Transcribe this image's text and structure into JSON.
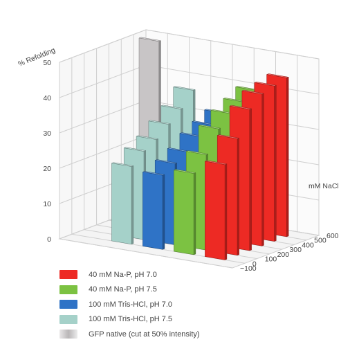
{
  "chart_data": {
    "type": "bar",
    "title": "",
    "zlabel": "% Refolding",
    "depth_label": "mM NaCl",
    "zlim": [
      0,
      50
    ],
    "z_ticks": [
      0,
      10,
      20,
      30,
      40,
      50
    ],
    "depth_ticks": [
      -100,
      0,
      100,
      200,
      300,
      400,
      500,
      600
    ],
    "depth_positions": [
      0,
      100,
      200,
      300,
      400,
      500
    ],
    "grid": true,
    "legend_position": "bottom-left",
    "series": [
      {
        "name": "40 mM Na-P, pH 7.0",
        "color": "#ed2a24",
        "values": [
          27,
          33,
          40,
          43,
          44,
          45
        ]
      },
      {
        "name": "40 mM Na-P, pH 7.5",
        "color": "#7cc242",
        "values": [
          23,
          27,
          33,
          36,
          38,
          40
        ]
      },
      {
        "name": "100 mM Tris-HCl, pH 7.0",
        "color": "#2f73c6",
        "values": [
          21,
          23,
          25,
          28,
          30,
          32
        ]
      },
      {
        "name": "100 mM Tris-HCl, pH 7.5",
        "color": "#a5d1c9",
        "values": [
          22,
          25,
          27,
          30,
          33,
          37
        ]
      },
      {
        "name": "GFP native (cut at 50% intensity)",
        "color": "#c8c5c6",
        "values": [
          50
        ]
      }
    ]
  }
}
